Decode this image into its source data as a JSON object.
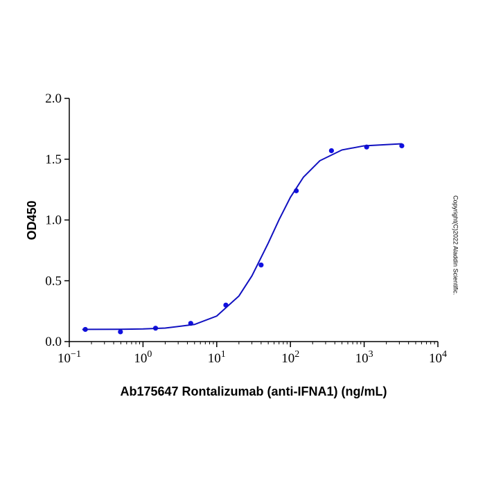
{
  "chart_data": {
    "type": "scatter",
    "xlabel": "Ab175647 Rontalizumab (anti-IFNA1) (ng/mL)",
    "ylabel": "OD450",
    "note": "Copyright(C)2022 Aladdin Scientific.",
    "xscale": "log",
    "xlim": [
      0.1,
      10000
    ],
    "xticks": [
      {
        "value": 0.1,
        "label": "10−1"
      },
      {
        "value": 1,
        "label": "100"
      },
      {
        "value": 10,
        "label": "101"
      },
      {
        "value": 100,
        "label": "102"
      },
      {
        "value": 1000,
        "label": "103"
      },
      {
        "value": 10000,
        "label": "104"
      }
    ],
    "ylim": [
      0,
      2
    ],
    "yticks": [
      {
        "value": 0,
        "label": "0.0"
      },
      {
        "value": 0.5,
        "label": "0.5"
      },
      {
        "value": 1,
        "label": "1.0"
      },
      {
        "value": 1.5,
        "label": "1.5"
      },
      {
        "value": 2,
        "label": "2.0"
      }
    ],
    "series": [
      {
        "type": "scatter",
        "color": "#1010e0",
        "x": [
          0.165,
          0.494,
          1.48,
          4.44,
          13.3,
          40,
          120,
          360,
          1080,
          3240
        ],
        "values": [
          0.1,
          0.08,
          0.11,
          0.15,
          0.3,
          0.63,
          1.24,
          1.57,
          1.6,
          1.61
        ]
      },
      {
        "type": "line",
        "color": "#1010c0",
        "x": [
          0.15,
          0.5,
          1,
          2,
          5,
          10,
          20,
          30,
          50,
          70,
          100,
          150,
          250,
          500,
          1000,
          3240
        ],
        "values": [
          0.1,
          0.101,
          0.104,
          0.111,
          0.141,
          0.21,
          0.375,
          0.54,
          0.81,
          1.002,
          1.187,
          1.352,
          1.487,
          1.576,
          1.61,
          1.627
        ]
      }
    ]
  }
}
